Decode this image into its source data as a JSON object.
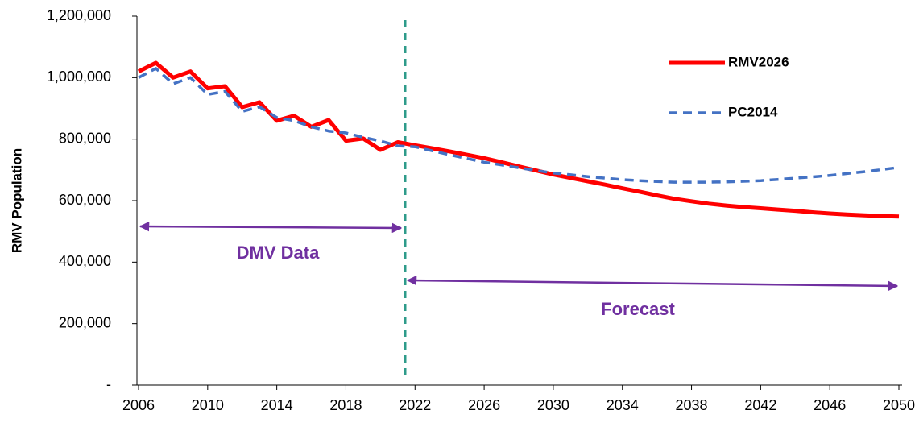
{
  "chart_data": {
    "type": "line",
    "y_label": "RMV Population",
    "x": [
      2006,
      2007,
      2008,
      2009,
      2010,
      2011,
      2012,
      2013,
      2014,
      2015,
      2016,
      2017,
      2018,
      2019,
      2020,
      2021,
      2022,
      2023,
      2024,
      2025,
      2026,
      2027,
      2028,
      2029,
      2030,
      2031,
      2032,
      2033,
      2034,
      2035,
      2036,
      2037,
      2038,
      2039,
      2040,
      2041,
      2042,
      2043,
      2044,
      2045,
      2046,
      2047,
      2048,
      2049,
      2050
    ],
    "series": [
      {
        "name": "RMV2026",
        "color": "#ff0000",
        "values": [
          1020000,
          1048000,
          1000000,
          1020000,
          965000,
          972000,
          904000,
          920000,
          860000,
          876000,
          840000,
          862000,
          795000,
          802000,
          765000,
          790000,
          780000,
          770000,
          760000,
          749000,
          738000,
          725000,
          711000,
          698000,
          685000,
          674000,
          663000,
          652000,
          640000,
          629000,
          617000,
          606000,
          598000,
          590000,
          584000,
          579000,
          575000,
          571000,
          567000,
          562000,
          558000,
          555000,
          552000,
          550000,
          548000
        ]
      },
      {
        "name": "PC2014",
        "color": "#4472c4",
        "values": [
          1000000,
          1030000,
          980000,
          1000000,
          945000,
          955000,
          890000,
          905000,
          870000,
          860000,
          840000,
          826000,
          820000,
          806000,
          794000,
          778000,
          775000,
          762000,
          749000,
          737000,
          725000,
          716000,
          707000,
          698000,
          690000,
          684000,
          678000,
          673000,
          668000,
          665000,
          662000,
          660000,
          660000,
          660000,
          661000,
          663000,
          665000,
          669000,
          673000,
          677000,
          682000,
          688000,
          694000,
          701000,
          708000
        ]
      }
    ],
    "xlim": [
      2006,
      2050
    ],
    "xticks": [
      2006,
      2010,
      2014,
      2018,
      2022,
      2026,
      2030,
      2034,
      2038,
      2042,
      2046,
      2050
    ],
    "ylim": [
      0,
      1200000
    ],
    "yticks": [
      {
        "value": 0,
        "label": "-"
      },
      {
        "value": 200000,
        "label": "200,000"
      },
      {
        "value": 400000,
        "label": "400,000"
      },
      {
        "value": 600000,
        "label": "600,000"
      },
      {
        "value": 800000,
        "label": "800,000"
      },
      {
        "value": 1000000,
        "label": "1,000,000"
      },
      {
        "value": 1200000,
        "label": "1,200,000"
      }
    ],
    "legend": "upper right",
    "annotations": [
      "DMV Data",
      "Forecast"
    ]
  }
}
